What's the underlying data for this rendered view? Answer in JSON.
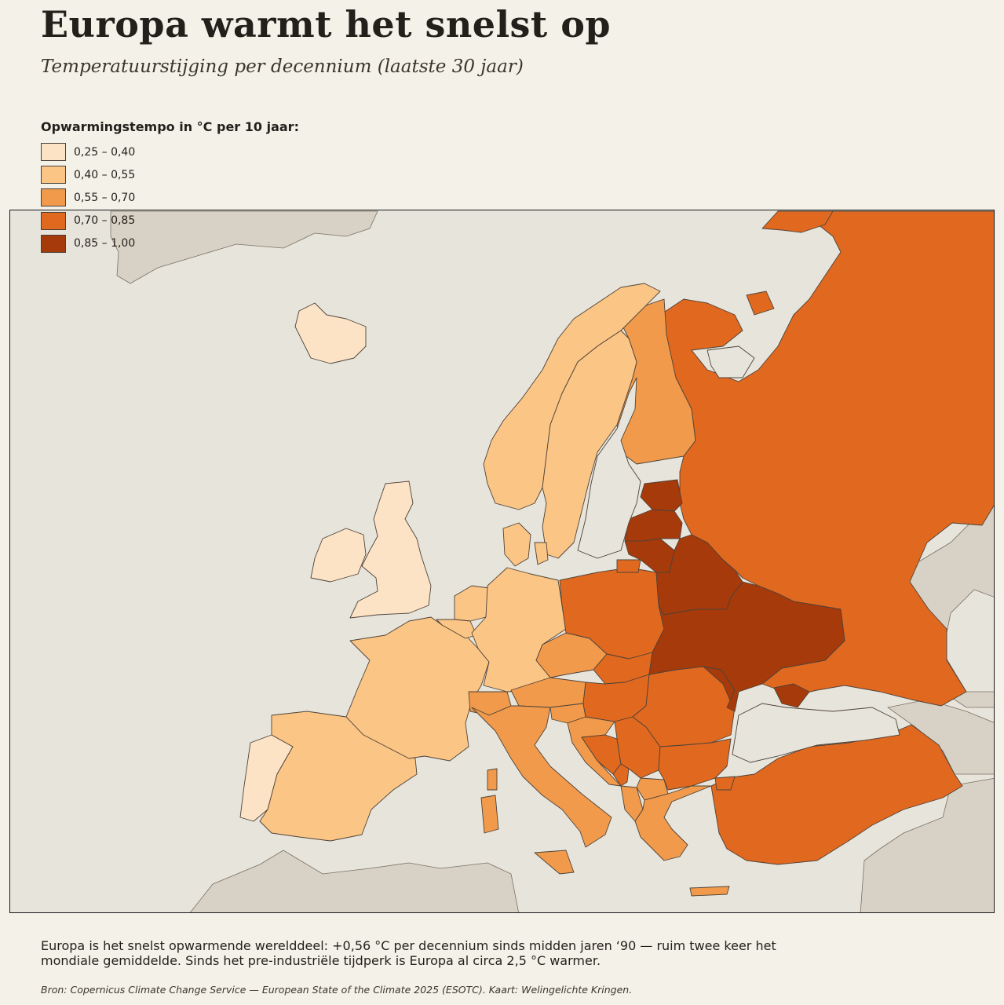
{
  "title": "Europa warmt het snelst op",
  "subtitle": "Temperatuurstijging per decennium (laatste 30 jaar)",
  "legend": {
    "title": "Opwarmingstempo in °C per 10 jaar:",
    "items": [
      {
        "label": "0,25 – 0,40",
        "color": "#fde3c6"
      },
      {
        "label": "0,40 – 0,55",
        "color": "#fbc585"
      },
      {
        "label": "0,55 – 0,70",
        "color": "#f19a4b"
      },
      {
        "label": "0,70 – 0,85",
        "color": "#e1681f"
      },
      {
        "label": "0,85 – 1,00",
        "color": "#a63a0a"
      }
    ]
  },
  "map": {
    "sea_color": "#e7e4db",
    "outside_color": "#d8d2c6",
    "regions": [
      {
        "name": "Iceland",
        "class": 0
      },
      {
        "name": "Ireland",
        "class": 0
      },
      {
        "name": "United Kingdom",
        "class": 0
      },
      {
        "name": "Portugal",
        "class": 0
      },
      {
        "name": "Spain",
        "class": 1
      },
      {
        "name": "France",
        "class": 1
      },
      {
        "name": "Belgium",
        "class": 1
      },
      {
        "name": "Netherlands",
        "class": 1
      },
      {
        "name": "Luxembourg",
        "class": 1
      },
      {
        "name": "Germany",
        "class": 1
      },
      {
        "name": "Denmark",
        "class": 1
      },
      {
        "name": "Norway",
        "class": 1
      },
      {
        "name": "Sweden",
        "class": 1
      },
      {
        "name": "Finland",
        "class": 2
      },
      {
        "name": "Italy",
        "class": 2
      },
      {
        "name": "Switzerland",
        "class": 2
      },
      {
        "name": "Austria",
        "class": 2
      },
      {
        "name": "Czechia",
        "class": 2
      },
      {
        "name": "Slovenia",
        "class": 2
      },
      {
        "name": "Croatia",
        "class": 2
      },
      {
        "name": "Greece",
        "class": 2
      },
      {
        "name": "Albania",
        "class": 2
      },
      {
        "name": "North Macedonia",
        "class": 2
      },
      {
        "name": "Poland",
        "class": 3
      },
      {
        "name": "Slovakia",
        "class": 3
      },
      {
        "name": "Hungary",
        "class": 3
      },
      {
        "name": "Romania",
        "class": 3
      },
      {
        "name": "Bulgaria",
        "class": 3
      },
      {
        "name": "Serbia",
        "class": 3
      },
      {
        "name": "Bosnia and Herzegovina",
        "class": 3
      },
      {
        "name": "Montenegro",
        "class": 3
      },
      {
        "name": "Kosovo",
        "class": 3
      },
      {
        "name": "Russia",
        "class": 3
      },
      {
        "name": "Turkey",
        "class": 3
      },
      {
        "name": "Kaliningrad",
        "class": 3
      },
      {
        "name": "Estonia",
        "class": 4
      },
      {
        "name": "Latvia",
        "class": 4
      },
      {
        "name": "Lithuania",
        "class": 4
      },
      {
        "name": "Belarus",
        "class": 4
      },
      {
        "name": "Ukraine",
        "class": 4
      },
      {
        "name": "Moldova",
        "class": 4
      }
    ]
  },
  "note": "Europa is het snelst opwarmende werelddeel: +0,56 °C per decennium sinds midden jaren ‘90 — ruim twee keer het mondiale gemiddelde. Sinds het pre-industriële tijdperk is Europa al circa 2,5 °C warmer.",
  "source": "Bron: Copernicus Climate Change Service — European State of the Climate 2025 (ESOTC). Kaart: Welingelichte Kringen."
}
